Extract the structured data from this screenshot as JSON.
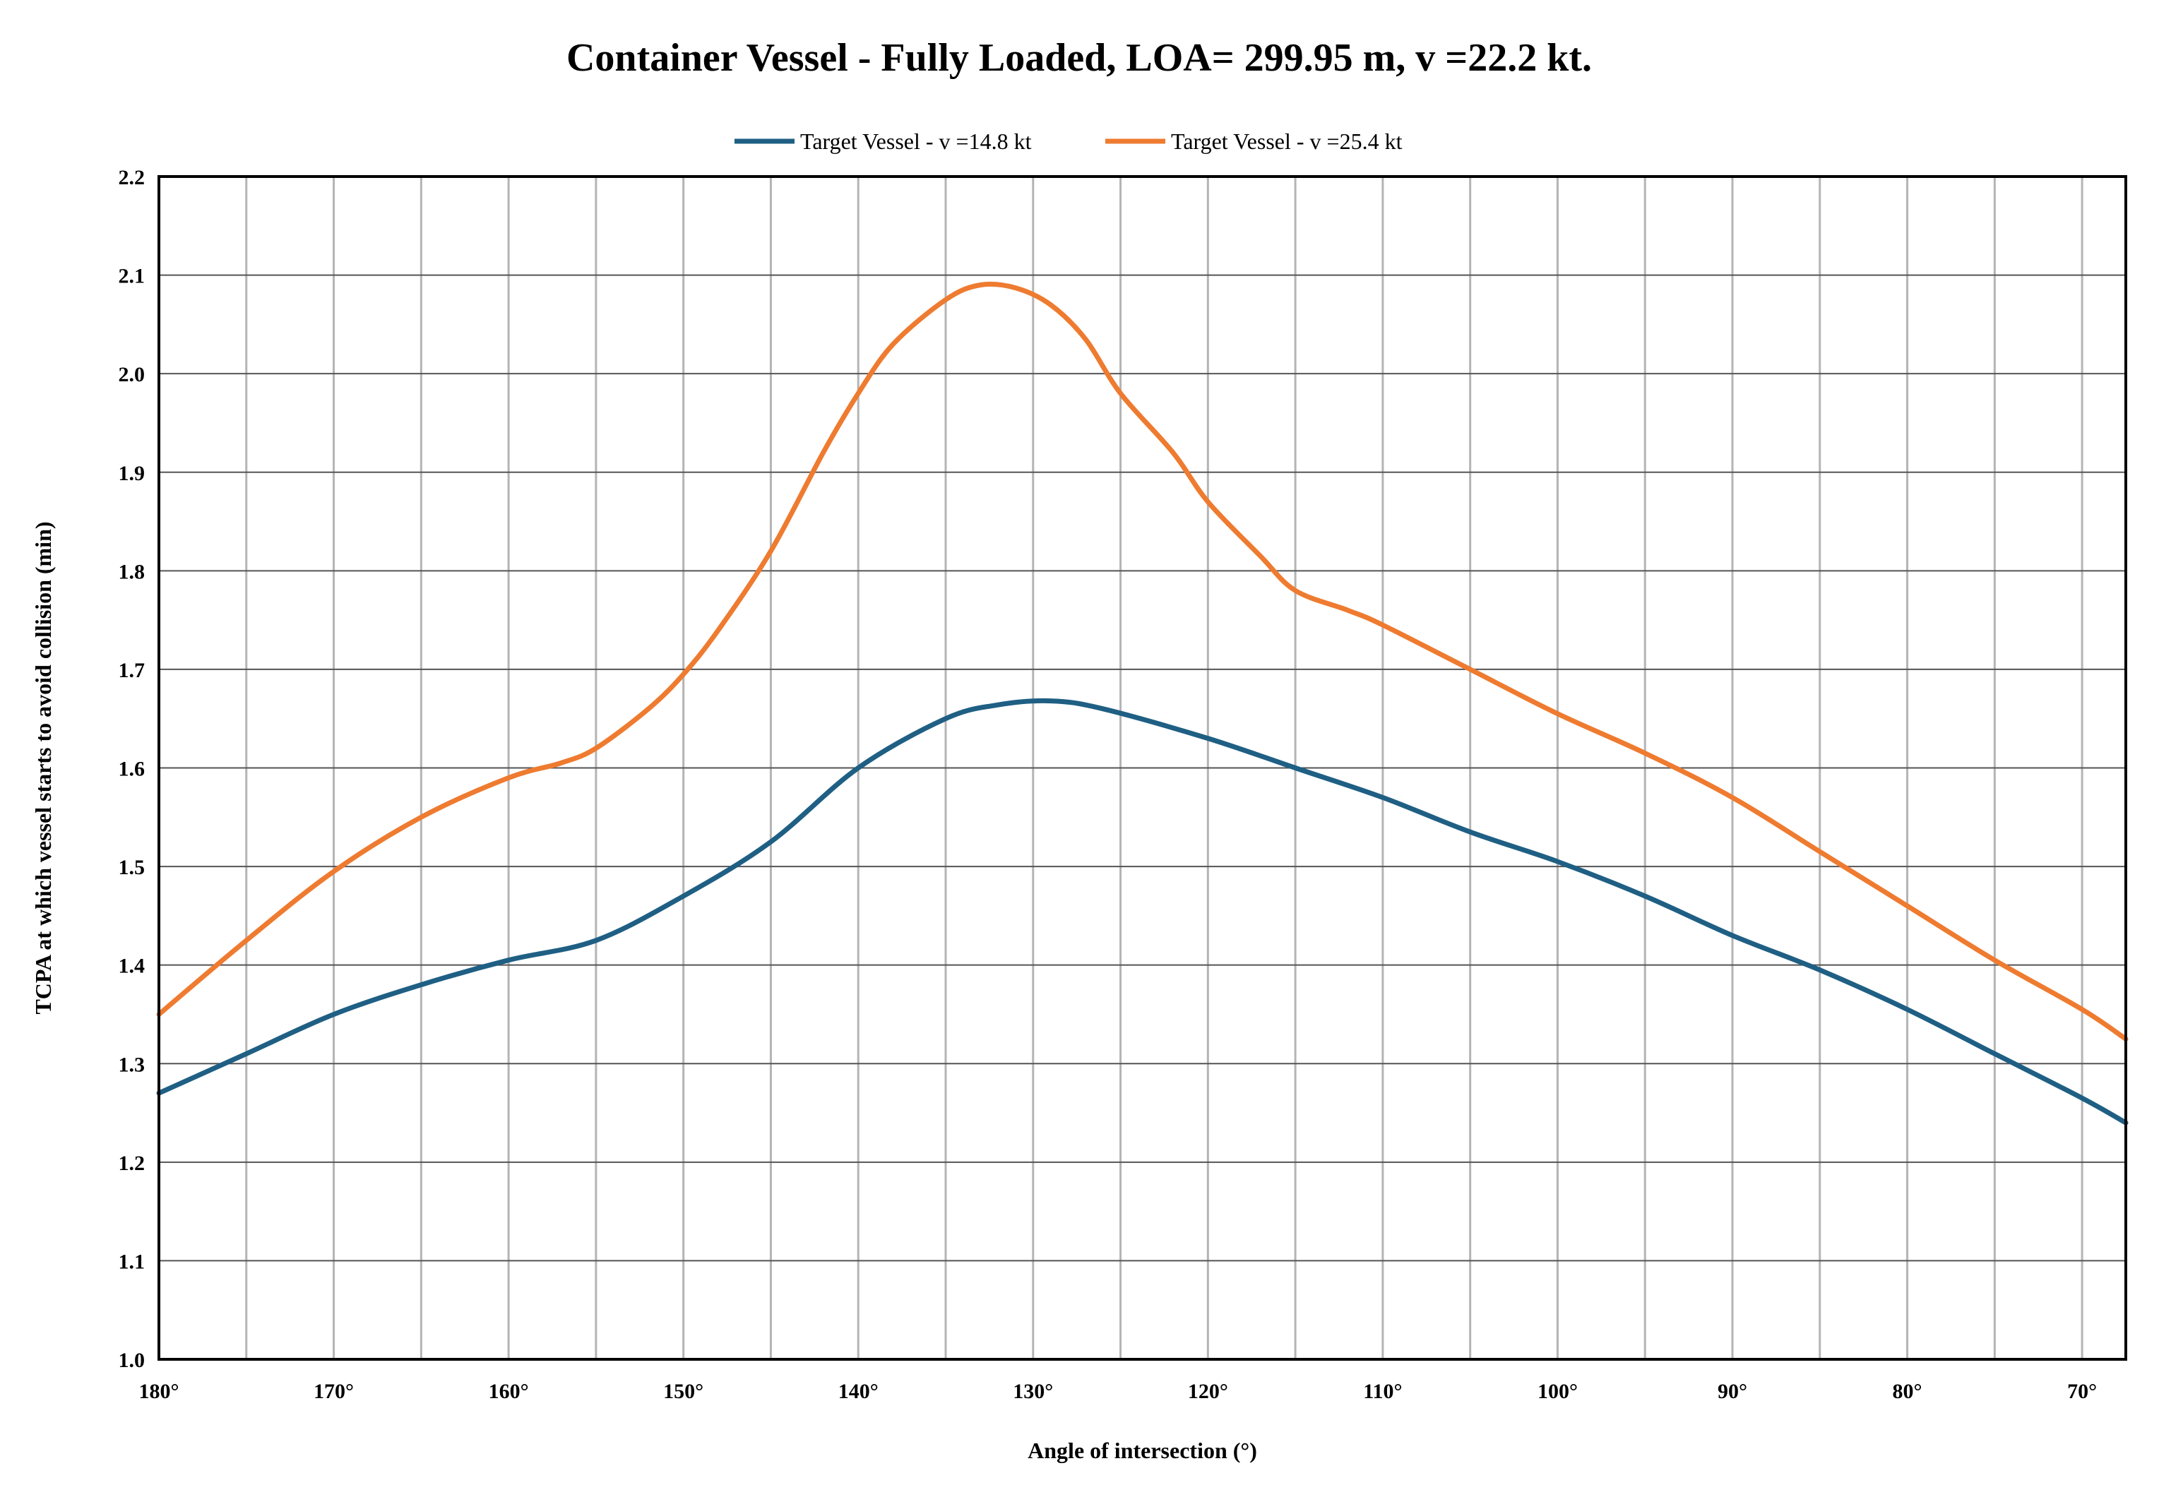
{
  "chart_data": {
    "type": "line",
    "title": "Container Vessel - Fully Loaded, LOA= 299.95 m, v =22.2 kt.",
    "xlabel": "Angle of intersection (°)",
    "ylabel": "TCPA at which vessel starts to avoid collision (min)",
    "xlim": [
      180,
      67.5
    ],
    "ylim": [
      1.0,
      2.2
    ],
    "x_reversed": true,
    "grid": true,
    "legend_position": "top",
    "x_ticks": [
      180,
      170,
      160,
      150,
      140,
      130,
      120,
      110,
      100,
      90,
      80,
      70
    ],
    "x_tick_labels": [
      "180°",
      "170°",
      "160°",
      "150°",
      "140°",
      "130°",
      "120°",
      "110°",
      "100°",
      "90°",
      "80°",
      "70°"
    ],
    "x_minor_grid_step": 5,
    "y_ticks": [
      1.0,
      1.1,
      1.2,
      1.3,
      1.4,
      1.5,
      1.6,
      1.7,
      1.8,
      1.9,
      2.0,
      2.1,
      2.2
    ],
    "y_tick_labels": [
      "1.0",
      "1.1",
      "1.2",
      "1.3",
      "1.4",
      "1.5",
      "1.6",
      "1.7",
      "1.8",
      "1.9",
      "2.0",
      "2.1",
      "2.2"
    ],
    "series": [
      {
        "name": "Target Vessel - v =14.8 kt",
        "color": "#1f5f84",
        "points": [
          [
            180,
            1.27
          ],
          [
            175,
            1.31
          ],
          [
            170,
            1.35
          ],
          [
            165,
            1.38
          ],
          [
            160,
            1.405
          ],
          [
            155,
            1.425
          ],
          [
            150,
            1.47
          ],
          [
            145,
            1.525
          ],
          [
            140,
            1.6
          ],
          [
            135,
            1.65
          ],
          [
            132,
            1.664
          ],
          [
            129,
            1.668
          ],
          [
            126,
            1.66
          ],
          [
            120,
            1.63
          ],
          [
            115,
            1.6
          ],
          [
            110,
            1.57
          ],
          [
            105,
            1.535
          ],
          [
            100,
            1.505
          ],
          [
            95,
            1.47
          ],
          [
            90,
            1.43
          ],
          [
            85,
            1.395
          ],
          [
            80,
            1.355
          ],
          [
            75,
            1.31
          ],
          [
            70,
            1.265
          ],
          [
            67.5,
            1.24
          ]
        ]
      },
      {
        "name": "Target Vessel - v =25.4 kt",
        "color": "#ee7b30",
        "points": [
          [
            180,
            1.35
          ],
          [
            175,
            1.425
          ],
          [
            170,
            1.495
          ],
          [
            165,
            1.55
          ],
          [
            160,
            1.59
          ],
          [
            157,
            1.605
          ],
          [
            155,
            1.62
          ],
          [
            152,
            1.66
          ],
          [
            150,
            1.695
          ],
          [
            148,
            1.74
          ],
          [
            145,
            1.82
          ],
          [
            142,
            1.92
          ],
          [
            140,
            1.98
          ],
          [
            138,
            2.03
          ],
          [
            135,
            2.075
          ],
          [
            133,
            2.09
          ],
          [
            131,
            2.087
          ],
          [
            129,
            2.07
          ],
          [
            127,
            2.035
          ],
          [
            125,
            1.98
          ],
          [
            122,
            1.92
          ],
          [
            120,
            1.87
          ],
          [
            117,
            1.815
          ],
          [
            115,
            1.78
          ],
          [
            112,
            1.76
          ],
          [
            110,
            1.745
          ],
          [
            105,
            1.7
          ],
          [
            100,
            1.655
          ],
          [
            95,
            1.615
          ],
          [
            90,
            1.57
          ],
          [
            85,
            1.515
          ],
          [
            80,
            1.46
          ],
          [
            75,
            1.405
          ],
          [
            70,
            1.355
          ],
          [
            67.5,
            1.325
          ]
        ]
      }
    ]
  }
}
